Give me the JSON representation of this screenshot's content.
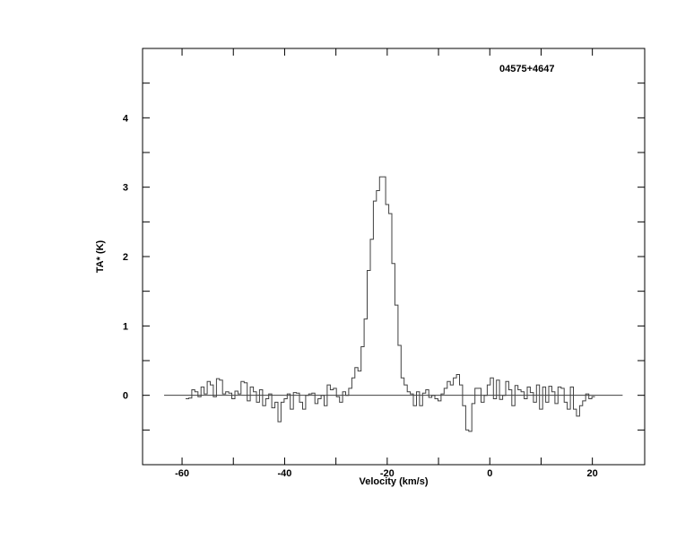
{
  "chart_data": {
    "type": "line",
    "style": "histogram-step",
    "annotation": "04575+4647",
    "xlabel": "Velocity (km/s)",
    "ylabel": "TA* (K)",
    "xlim": [
      -67.7,
      30.2
    ],
    "ylim": [
      -1.0,
      5.0
    ],
    "xticks": [
      -60,
      -40,
      -20,
      0,
      20
    ],
    "yticks": [
      0,
      1,
      2,
      3,
      4
    ],
    "baseline": {
      "y": 0,
      "x_range": [
        -63.5,
        25.9
      ]
    },
    "grid": false,
    "line_color": "#404040",
    "points": [
      [
        -59.0,
        -0.05
      ],
      [
        -58.4,
        -0.04
      ],
      [
        -57.8,
        0.08
      ],
      [
        -57.2,
        0.05
      ],
      [
        -56.6,
        -0.02
      ],
      [
        -56.0,
        0.12
      ],
      [
        -55.4,
        0.02
      ],
      [
        -54.8,
        0.2
      ],
      [
        -54.2,
        0.15
      ],
      [
        -53.6,
        -0.02
      ],
      [
        -53.0,
        0.24
      ],
      [
        -52.4,
        0.22
      ],
      [
        -51.8,
        0.02
      ],
      [
        -51.2,
        0.05
      ],
      [
        -50.6,
        0.03
      ],
      [
        -50.0,
        -0.05
      ],
      [
        -49.4,
        0.06
      ],
      [
        -48.8,
        0.02
      ],
      [
        -48.2,
        0.2
      ],
      [
        -47.6,
        0.18
      ],
      [
        -47.0,
        -0.08
      ],
      [
        -46.4,
        0.12
      ],
      [
        -45.8,
        0.05
      ],
      [
        -45.2,
        -0.1
      ],
      [
        -44.6,
        0.08
      ],
      [
        -44.0,
        -0.15
      ],
      [
        -43.4,
        -0.05
      ],
      [
        -42.8,
        0.02
      ],
      [
        -42.2,
        -0.18
      ],
      [
        -41.6,
        -0.1
      ],
      [
        -41.0,
        -0.38
      ],
      [
        -40.4,
        -0.1
      ],
      [
        -39.8,
        -0.05
      ],
      [
        -39.2,
        0.02
      ],
      [
        -38.6,
        -0.2
      ],
      [
        -38.0,
        0.04
      ],
      [
        -37.4,
        0.03
      ],
      [
        -36.8,
        -0.1
      ],
      [
        -36.2,
        -0.2
      ],
      [
        -35.6,
        0.0
      ],
      [
        -35.0,
        0.02
      ],
      [
        -34.4,
        0.03
      ],
      [
        -33.8,
        -0.12
      ],
      [
        -33.2,
        -0.05
      ],
      [
        -32.6,
        0.0
      ],
      [
        -32.0,
        -0.15
      ],
      [
        -31.4,
        0.15
      ],
      [
        -30.8,
        0.08
      ],
      [
        -30.2,
        0.1
      ],
      [
        -29.6,
        -0.02
      ],
      [
        -29.0,
        -0.1
      ],
      [
        -28.4,
        0.05
      ],
      [
        -27.8,
        0.0
      ],
      [
        -27.2,
        0.1
      ],
      [
        -26.6,
        0.25
      ],
      [
        -26.0,
        0.4
      ],
      [
        -25.4,
        0.35
      ],
      [
        -24.8,
        0.7
      ],
      [
        -24.2,
        1.1
      ],
      [
        -23.6,
        1.8
      ],
      [
        -23.0,
        2.25
      ],
      [
        -22.4,
        2.8
      ],
      [
        -21.8,
        2.95
      ],
      [
        -21.2,
        3.15
      ],
      [
        -20.6,
        3.15
      ],
      [
        -20.0,
        2.75
      ],
      [
        -19.4,
        2.62
      ],
      [
        -18.8,
        1.9
      ],
      [
        -18.2,
        1.3
      ],
      [
        -17.6,
        0.72
      ],
      [
        -17.0,
        0.25
      ],
      [
        -16.4,
        0.15
      ],
      [
        -15.8,
        0.05
      ],
      [
        -15.2,
        0.02
      ],
      [
        -14.6,
        -0.15
      ],
      [
        -14.0,
        0.05
      ],
      [
        -13.4,
        -0.15
      ],
      [
        -12.8,
        0.03
      ],
      [
        -12.2,
        0.08
      ],
      [
        -11.6,
        -0.03
      ],
      [
        -11.0,
        0.0
      ],
      [
        -10.4,
        -0.05
      ],
      [
        -9.8,
        -0.08
      ],
      [
        -9.2,
        0.02
      ],
      [
        -8.6,
        0.1
      ],
      [
        -8.0,
        0.2
      ],
      [
        -7.4,
        0.15
      ],
      [
        -6.8,
        0.25
      ],
      [
        -6.2,
        0.3
      ],
      [
        -5.6,
        0.15
      ],
      [
        -5.0,
        -0.15
      ],
      [
        -4.4,
        -0.5
      ],
      [
        -3.8,
        -0.52
      ],
      [
        -3.2,
        -0.12
      ],
      [
        -2.6,
        0.1
      ],
      [
        -2.0,
        0.1
      ],
      [
        -1.4,
        -0.1
      ],
      [
        -0.8,
        0.0
      ],
      [
        -0.2,
        0.15
      ],
      [
        0.4,
        0.25
      ],
      [
        1.0,
        -0.05
      ],
      [
        1.6,
        0.22
      ],
      [
        2.2,
        -0.06
      ],
      [
        2.8,
        0.0
      ],
      [
        3.4,
        0.2
      ],
      [
        4.0,
        0.08
      ],
      [
        4.6,
        -0.15
      ],
      [
        5.2,
        0.14
      ],
      [
        5.8,
        0.08
      ],
      [
        6.4,
        0.05
      ],
      [
        7.0,
        -0.05
      ],
      [
        7.6,
        0.12
      ],
      [
        8.2,
        0.04
      ],
      [
        8.8,
        -0.1
      ],
      [
        9.4,
        0.15
      ],
      [
        10.0,
        -0.2
      ],
      [
        10.6,
        0.12
      ],
      [
        11.2,
        -0.1
      ],
      [
        11.8,
        0.13
      ],
      [
        12.4,
        0.05
      ],
      [
        13.0,
        -0.12
      ],
      [
        13.6,
        0.12
      ],
      [
        14.2,
        0.1
      ],
      [
        14.8,
        -0.1
      ],
      [
        15.4,
        -0.2
      ],
      [
        16.0,
        0.12
      ],
      [
        16.6,
        -0.2
      ],
      [
        17.2,
        -0.3
      ],
      [
        17.8,
        -0.15
      ],
      [
        18.4,
        -0.08
      ],
      [
        19.0,
        0.02
      ],
      [
        19.6,
        -0.05
      ],
      [
        20.2,
        -0.02
      ]
    ]
  }
}
